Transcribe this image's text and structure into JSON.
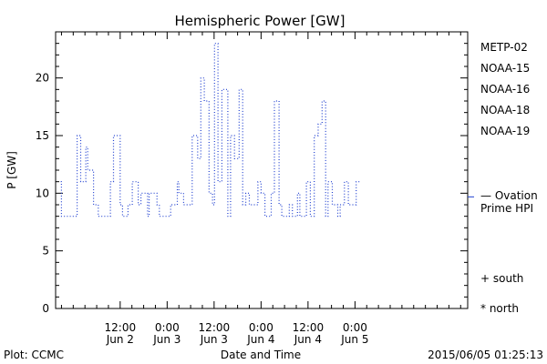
{
  "chart_data": {
    "type": "line",
    "title": "Hemispheric Power [GW]",
    "ylabel": "P [GW]",
    "xlabel": "Date and Time",
    "ylim": [
      0,
      24
    ],
    "yticks": [
      0,
      5,
      10,
      15,
      20
    ],
    "xlim_hours": [
      -4.5,
      100.8
    ],
    "xticks": [
      {
        "hour": 12,
        "time": "12:00",
        "date": "Jun 2"
      },
      {
        "hour": 24,
        "time": "0:00",
        "date": "Jun 3"
      },
      {
        "hour": 36,
        "time": "12:00",
        "date": "Jun 3"
      },
      {
        "hour": 48,
        "time": "0:00",
        "date": "Jun 4"
      },
      {
        "hour": 60,
        "time": "12:00",
        "date": "Jun 4"
      },
      {
        "hour": 72,
        "time": "0:00",
        "date": "Jun 5"
      }
    ],
    "series_legend": [
      {
        "name": "METP-02",
        "color": "#000000"
      },
      {
        "name": "NOAA-15",
        "color": "#1f3fd0"
      },
      {
        "name": "NOAA-16",
        "color": "#00b8d8"
      },
      {
        "name": "NOAA-18",
        "color": "#20c850"
      },
      {
        "name": "NOAA-19",
        "color": "#f09020"
      }
    ],
    "symbols_legend": [
      {
        "symbol": "+",
        "label": "south"
      },
      {
        "symbol": "*",
        "label": "north"
      }
    ],
    "series": [
      {
        "name": "NOAA-15",
        "color": "#1f3fd0",
        "style": "dotted-step",
        "points": [
          [
            -3.2,
            11
          ],
          [
            -3,
            8
          ],
          [
            1,
            15
          ],
          [
            1.9,
            11
          ],
          [
            3.2,
            14
          ],
          [
            3.7,
            12
          ],
          [
            5.2,
            9
          ],
          [
            6.4,
            8
          ],
          [
            9.5,
            11
          ],
          [
            10.3,
            15
          ],
          [
            12,
            9
          ],
          [
            12.6,
            8
          ],
          [
            14,
            9
          ],
          [
            15.1,
            11
          ],
          [
            16.6,
            9
          ],
          [
            17.3,
            10
          ],
          [
            19,
            8
          ],
          [
            19.4,
            10
          ],
          [
            21.4,
            9
          ],
          [
            22,
            8
          ],
          [
            24.9,
            9
          ],
          [
            26.6,
            11
          ],
          [
            27,
            10
          ],
          [
            28.2,
            9
          ],
          [
            30.4,
            15
          ],
          [
            31.8,
            13
          ],
          [
            32.6,
            20
          ],
          [
            33.5,
            18
          ],
          [
            34.7,
            10
          ],
          [
            35.6,
            9
          ],
          [
            36.1,
            23
          ],
          [
            37,
            11
          ],
          [
            38,
            19
          ],
          [
            39.5,
            8
          ],
          [
            40.2,
            15
          ],
          [
            41.2,
            13
          ],
          [
            42.4,
            19
          ],
          [
            43.3,
            9
          ],
          [
            44.1,
            10
          ],
          [
            45,
            9
          ],
          [
            47.2,
            11
          ],
          [
            48,
            10
          ],
          [
            49,
            8
          ],
          [
            50.6,
            10
          ],
          [
            51.4,
            18
          ],
          [
            52.6,
            9
          ],
          [
            53.3,
            8
          ],
          [
            55.2,
            9
          ],
          [
            56,
            8
          ],
          [
            57.3,
            10
          ],
          [
            57.9,
            8
          ],
          [
            59.6,
            11
          ],
          [
            60.6,
            8
          ],
          [
            61.6,
            15
          ],
          [
            62.6,
            16
          ],
          [
            63.6,
            18
          ],
          [
            64.5,
            8
          ],
          [
            65.1,
            11
          ],
          [
            66.2,
            9
          ],
          [
            67.6,
            8
          ],
          [
            68.2,
            9
          ],
          [
            69.3,
            11
          ],
          [
            70.3,
            9
          ],
          [
            72.3,
            11
          ],
          [
            73.4,
            11
          ]
        ]
      }
    ],
    "reference_line": {
      "label_lines": [
        "— Ovation",
        "Prime HPI"
      ],
      "value": 10,
      "color": "#1f3fd0"
    },
    "footer": {
      "left": "Plot: CCMC",
      "right": "2015/06/05 01:25:13"
    }
  }
}
